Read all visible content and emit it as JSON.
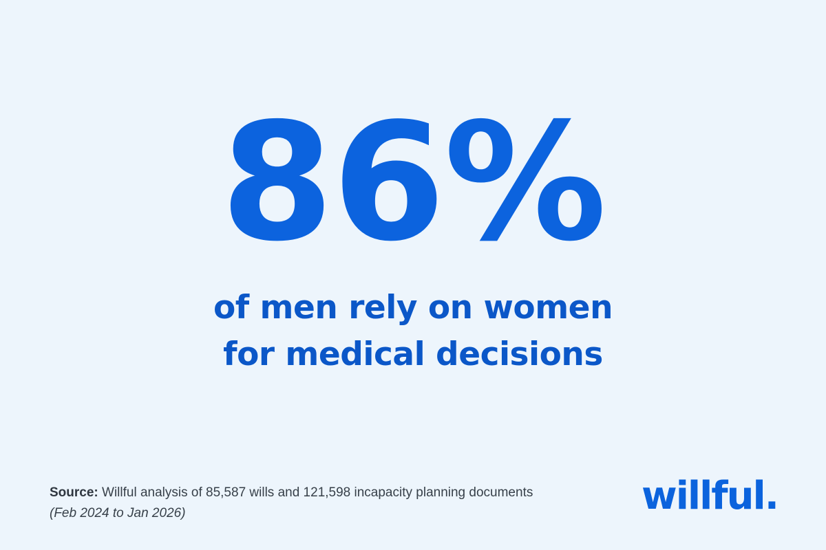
{
  "hero": {
    "stat": "86%",
    "headline_line_1": "of men rely on women",
    "headline_line_2": "for medical decisions"
  },
  "footer": {
    "source_label": "Source:",
    "source_text": "Willful analysis of 85,587 wills and 121,598 incapacity planning documents",
    "date_range": "(Feb 2024 to Jan 2026)",
    "brand": "willful."
  },
  "colors": {
    "background": "#edf5fc",
    "accent": "#0c63de",
    "body_text": "#374049"
  }
}
